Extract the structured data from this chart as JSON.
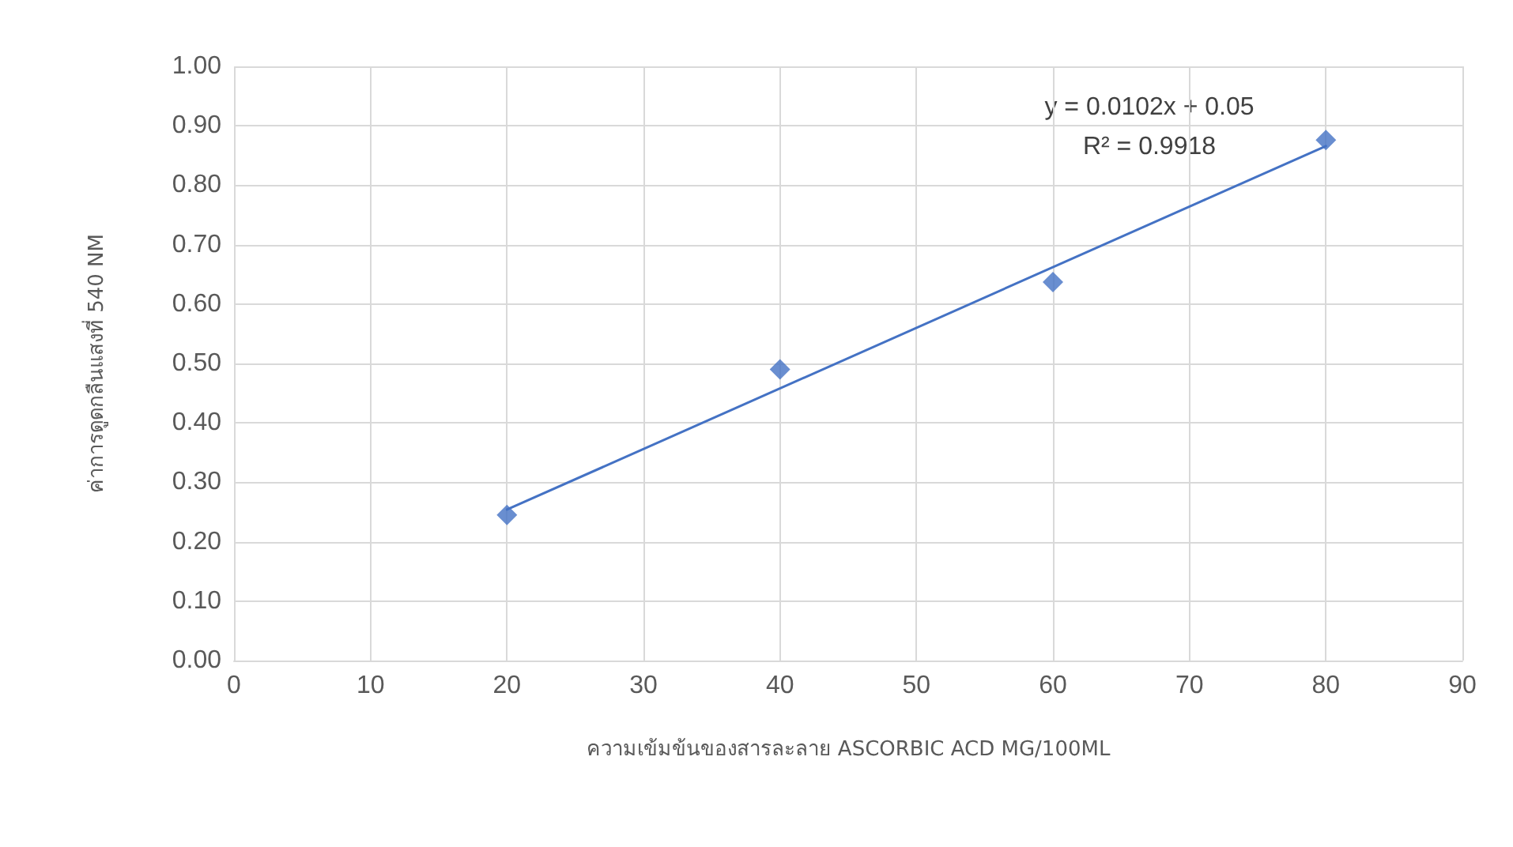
{
  "chart_data": {
    "type": "scatter",
    "xlabel": "ความเข้มข้นของสารละลาย ASCORBIC ACD MG/100ML",
    "ylabel": "ค่าการดูดกลืนแสงที่ 540 NM",
    "x": [
      20,
      40,
      60,
      80
    ],
    "series": [
      {
        "color": "#4472c4",
        "marker": "diamond",
        "values": [
          0.245,
          0.49,
          0.637,
          0.876
        ]
      },
      {
        "type": "line",
        "color": "#4472c4",
        "marker": "none",
        "line_style": "solid",
        "x": [
          20,
          80
        ],
        "values": [
          0.254,
          0.866
        ]
      }
    ],
    "annotations": [
      "y = 0.0102x + 0.05",
      "R² = 0.9918"
    ],
    "xlim": [
      0,
      90
    ],
    "xticks": [
      0,
      10,
      20,
      30,
      40,
      50,
      60,
      70,
      80,
      90
    ],
    "ylim": [
      0,
      1
    ],
    "yticks": [
      {
        "value": 0,
        "label": "0.00"
      },
      {
        "value": 0.1,
        "label": "0.10"
      },
      {
        "value": 0.2,
        "label": "0.20"
      },
      {
        "value": 0.3,
        "label": "0.30"
      },
      {
        "value": 0.4,
        "label": "0.40"
      },
      {
        "value": 0.5,
        "label": "0.50"
      },
      {
        "value": 0.6,
        "label": "0.60"
      },
      {
        "value": 0.7,
        "label": "0.70"
      },
      {
        "value": 0.8,
        "label": "0.80"
      },
      {
        "value": 0.9,
        "label": "0.90"
      },
      {
        "value": 1,
        "label": "1.00"
      }
    ],
    "grid": true
  }
}
